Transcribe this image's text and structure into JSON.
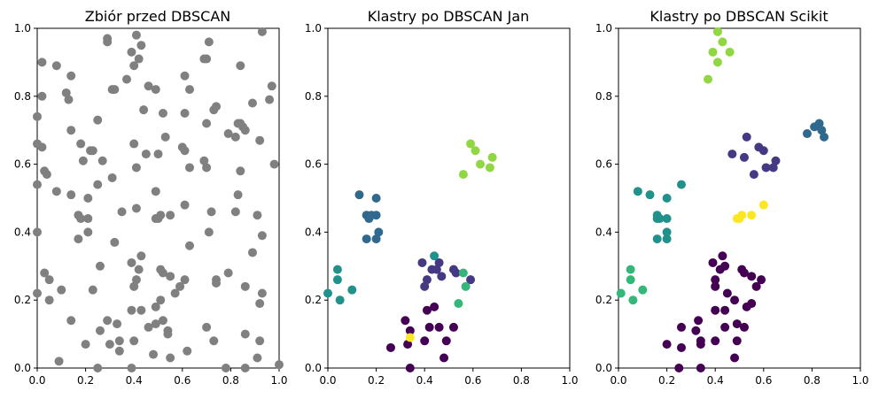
{
  "chart_data": [
    {
      "type": "scatter",
      "title": "Zbiór przed DBSCAN",
      "xlim": [
        0,
        1
      ],
      "ylim": [
        0,
        1
      ],
      "xticks": [
        "0.0",
        "0.2",
        "0.4",
        "0.6",
        "0.8",
        "1.0"
      ],
      "yticks": [
        "0.0",
        "0.2",
        "0.4",
        "0.6",
        "0.8",
        "1.0"
      ],
      "grid": false,
      "point_color": "#808080",
      "points": [
        [
          0.08,
          0.89
        ],
        [
          0.02,
          0.9
        ],
        [
          0.14,
          0.86
        ],
        [
          0.02,
          0.8
        ],
        [
          0.12,
          0.81
        ],
        [
          0.0,
          0.74
        ],
        [
          0.13,
          0.79
        ],
        [
          0.29,
          0.97
        ],
        [
          0.29,
          0.96
        ],
        [
          0.41,
          0.98
        ],
        [
          0.39,
          0.93
        ],
        [
          0.43,
          0.95
        ],
        [
          0.4,
          0.89
        ],
        [
          0.42,
          0.91
        ],
        [
          0.31,
          0.82
        ],
        [
          0.32,
          0.82
        ],
        [
          0.37,
          0.85
        ],
        [
          0.46,
          0.83
        ],
        [
          0.44,
          0.76
        ],
        [
          0.49,
          0.82
        ],
        [
          0.52,
          0.75
        ],
        [
          0.61,
          0.86
        ],
        [
          0.63,
          0.82
        ],
        [
          0.69,
          0.91
        ],
        [
          0.71,
          0.96
        ],
        [
          0.7,
          0.91
        ],
        [
          0.61,
          0.75
        ],
        [
          0.73,
          0.76
        ],
        [
          0.74,
          0.77
        ],
        [
          0.84,
          0.89
        ],
        [
          0.93,
          0.99
        ],
        [
          0.97,
          0.83
        ],
        [
          0.96,
          0.79
        ],
        [
          0.89,
          0.78
        ],
        [
          0.25,
          0.73
        ],
        [
          0.14,
          0.7
        ],
        [
          0.0,
          0.66
        ],
        [
          0.02,
          0.65
        ],
        [
          0.18,
          0.66
        ],
        [
          0.22,
          0.64
        ],
        [
          0.23,
          0.64
        ],
        [
          0.27,
          0.61
        ],
        [
          0.19,
          0.61
        ],
        [
          0.4,
          0.66
        ],
        [
          0.45,
          0.63
        ],
        [
          0.41,
          0.59
        ],
        [
          0.5,
          0.63
        ],
        [
          0.53,
          0.68
        ],
        [
          0.6,
          0.65
        ],
        [
          0.61,
          0.64
        ],
        [
          0.7,
          0.72
        ],
        [
          0.79,
          0.69
        ],
        [
          0.82,
          0.68
        ],
        [
          0.83,
          0.72
        ],
        [
          0.84,
          0.72
        ],
        [
          0.85,
          0.71
        ],
        [
          0.86,
          0.7
        ],
        [
          0.92,
          0.67
        ],
        [
          0.98,
          0.6
        ],
        [
          0.04,
          0.57
        ],
        [
          0.03,
          0.58
        ],
        [
          0.0,
          0.54
        ],
        [
          0.25,
          0.54
        ],
        [
          0.31,
          0.56
        ],
        [
          0.49,
          0.52
        ],
        [
          0.63,
          0.59
        ],
        [
          0.69,
          0.61
        ],
        [
          0.7,
          0.59
        ],
        [
          0.84,
          0.58
        ],
        [
          0.83,
          0.51
        ],
        [
          0.08,
          0.52
        ],
        [
          0.14,
          0.51
        ],
        [
          0.21,
          0.5
        ],
        [
          0.17,
          0.45
        ],
        [
          0.18,
          0.44
        ],
        [
          0.21,
          0.44
        ],
        [
          0.35,
          0.46
        ],
        [
          0.41,
          0.47
        ],
        [
          0.49,
          0.44
        ],
        [
          0.5,
          0.44
        ],
        [
          0.51,
          0.45
        ],
        [
          0.55,
          0.45
        ],
        [
          0.61,
          0.48
        ],
        [
          0.72,
          0.46
        ],
        [
          0.82,
          0.46
        ],
        [
          0.91,
          0.45
        ],
        [
          0.0,
          0.4
        ],
        [
          0.17,
          0.38
        ],
        [
          0.21,
          0.4
        ],
        [
          0.32,
          0.37
        ],
        [
          0.63,
          0.36
        ],
        [
          0.71,
          0.4
        ],
        [
          0.93,
          0.39
        ],
        [
          0.89,
          0.34
        ],
        [
          0.39,
          0.31
        ],
        [
          0.43,
          0.33
        ],
        [
          0.42,
          0.29
        ],
        [
          0.55,
          0.27
        ],
        [
          0.51,
          0.29
        ],
        [
          0.52,
          0.28
        ],
        [
          0.57,
          0.22
        ],
        [
          0.61,
          0.26
        ],
        [
          0.59,
          0.24
        ],
        [
          0.79,
          0.28
        ],
        [
          0.74,
          0.25
        ],
        [
          0.74,
          0.26
        ],
        [
          0.86,
          0.24
        ],
        [
          0.93,
          0.22
        ],
        [
          0.26,
          0.3
        ],
        [
          0.41,
          0.26
        ],
        [
          0.4,
          0.24
        ],
        [
          0.43,
          0.17
        ],
        [
          0.51,
          0.2
        ],
        [
          0.49,
          0.18
        ],
        [
          0.03,
          0.28
        ],
        [
          0.05,
          0.26
        ],
        [
          0.0,
          0.22
        ],
        [
          0.1,
          0.23
        ],
        [
          0.05,
          0.2
        ],
        [
          0.23,
          0.23
        ],
        [
          0.39,
          0.17
        ],
        [
          0.46,
          0.12
        ],
        [
          0.49,
          0.13
        ],
        [
          0.52,
          0.14
        ],
        [
          0.54,
          0.1
        ],
        [
          0.62,
          0.05
        ],
        [
          0.7,
          0.12
        ],
        [
          0.73,
          0.08
        ],
        [
          0.92,
          0.19
        ],
        [
          0.92,
          0.08
        ],
        [
          0.86,
          0.1
        ],
        [
          0.14,
          0.14
        ],
        [
          0.26,
          0.11
        ],
        [
          0.33,
          0.13
        ],
        [
          0.34,
          0.08
        ],
        [
          0.34,
          0.05
        ],
        [
          0.4,
          0.08
        ],
        [
          0.48,
          0.04
        ],
        [
          0.39,
          0.0
        ],
        [
          0.55,
          0.03
        ],
        [
          0.2,
          0.07
        ],
        [
          0.3,
          0.07
        ],
        [
          0.09,
          0.02
        ],
        [
          0.25,
          0.0
        ],
        [
          0.78,
          0.0
        ],
        [
          0.86,
          0.0
        ],
        [
          1.0,
          0.01
        ],
        [
          0.91,
          0.03
        ],
        [
          0.54,
          0.11
        ],
        [
          0.29,
          0.14
        ]
      ]
    },
    {
      "type": "scatter",
      "title": "Klastry po DBSCAN Jan",
      "xlim": [
        0,
        1
      ],
      "ylim": [
        0,
        1
      ],
      "xticks": [
        "0.0",
        "0.2",
        "0.4",
        "0.6",
        "0.8",
        "1.0"
      ],
      "yticks": [
        "0.0",
        "0.2",
        "0.4",
        "0.6",
        "0.8",
        "1.0"
      ],
      "grid": false,
      "series": [
        {
          "color": "#440154",
          "points": [
            [
              0.32,
              0.14
            ],
            [
              0.34,
              0.11
            ],
            [
              0.34,
              0.0
            ],
            [
              0.4,
              0.08
            ],
            [
              0.41,
              0.17
            ],
            [
              0.42,
              0.12
            ],
            [
              0.44,
              0.18
            ],
            [
              0.46,
              0.12
            ],
            [
              0.48,
              0.03
            ],
            [
              0.49,
              0.08
            ],
            [
              0.52,
              0.12
            ],
            [
              0.26,
              0.06
            ],
            [
              0.33,
              0.07
            ]
          ]
        },
        {
          "color": "#443983",
          "points": [
            [
              0.39,
              0.31
            ],
            [
              0.43,
              0.29
            ],
            [
              0.45,
              0.29
            ],
            [
              0.46,
              0.31
            ],
            [
              0.47,
              0.27
            ],
            [
              0.41,
              0.26
            ],
            [
              0.4,
              0.24
            ],
            [
              0.52,
              0.29
            ],
            [
              0.53,
              0.28
            ],
            [
              0.59,
              0.26
            ]
          ]
        },
        {
          "color": "#31688e",
          "points": [
            [
              0.13,
              0.51
            ],
            [
              0.2,
              0.5
            ],
            [
              0.16,
              0.45
            ],
            [
              0.17,
              0.44
            ],
            [
              0.18,
              0.45
            ],
            [
              0.2,
              0.45
            ],
            [
              0.16,
              0.38
            ],
            [
              0.21,
              0.4
            ],
            [
              0.2,
              0.38
            ]
          ]
        },
        {
          "color": "#21918c",
          "points": [
            [
              0.04,
              0.29
            ],
            [
              0.04,
              0.26
            ],
            [
              0.0,
              0.22
            ],
            [
              0.1,
              0.23
            ],
            [
              0.05,
              0.2
            ],
            [
              0.44,
              0.33
            ]
          ]
        },
        {
          "color": "#35b779",
          "points": [
            [
              0.56,
              0.28
            ],
            [
              0.57,
              0.24
            ],
            [
              0.54,
              0.19
            ]
          ]
        },
        {
          "color": "#90d743",
          "points": [
            [
              0.59,
              0.66
            ],
            [
              0.61,
              0.64
            ],
            [
              0.63,
              0.6
            ],
            [
              0.67,
              0.59
            ],
            [
              0.68,
              0.62
            ],
            [
              0.56,
              0.57
            ]
          ]
        },
        {
          "color": "#fde725",
          "points": [
            [
              0.34,
              0.09
            ]
          ]
        }
      ]
    },
    {
      "type": "scatter",
      "title": "Klastry po DBSCAN Scikit",
      "xlim": [
        0,
        1
      ],
      "ylim": [
        0,
        1
      ],
      "xticks": [
        "0.0",
        "0.2",
        "0.4",
        "0.6",
        "0.8",
        "1.0"
      ],
      "yticks": [
        "0.0",
        "0.2",
        "0.4",
        "0.6",
        "0.8",
        "1.0"
      ],
      "grid": false,
      "series": [
        {
          "color": "#440154",
          "points": [
            [
              0.39,
              0.31
            ],
            [
              0.43,
              0.33
            ],
            [
              0.42,
              0.29
            ],
            [
              0.44,
              0.3
            ],
            [
              0.51,
              0.29
            ],
            [
              0.52,
              0.28
            ],
            [
              0.55,
              0.27
            ],
            [
              0.57,
              0.24
            ],
            [
              0.59,
              0.26
            ],
            [
              0.4,
              0.26
            ],
            [
              0.4,
              0.24
            ],
            [
              0.45,
              0.22
            ],
            [
              0.44,
              0.17
            ],
            [
              0.48,
              0.2
            ],
            [
              0.53,
              0.18
            ],
            [
              0.55,
              0.19
            ],
            [
              0.4,
              0.17
            ],
            [
              0.33,
              0.14
            ],
            [
              0.34,
              0.08
            ],
            [
              0.34,
              0.07
            ],
            [
              0.4,
              0.08
            ],
            [
              0.44,
              0.12
            ],
            [
              0.49,
              0.13
            ],
            [
              0.52,
              0.12
            ],
            [
              0.49,
              0.08
            ],
            [
              0.48,
              0.03
            ],
            [
              0.26,
              0.12
            ],
            [
              0.2,
              0.07
            ],
            [
              0.26,
              0.06
            ],
            [
              0.25,
              0.0
            ],
            [
              0.34,
              0.0
            ],
            [
              0.32,
              0.11
            ]
          ]
        },
        {
          "color": "#443983",
          "points": [
            [
              0.53,
              0.68
            ],
            [
              0.58,
              0.65
            ],
            [
              0.6,
              0.64
            ],
            [
              0.47,
              0.63
            ],
            [
              0.52,
              0.62
            ],
            [
              0.61,
              0.59
            ],
            [
              0.64,
              0.59
            ],
            [
              0.65,
              0.61
            ],
            [
              0.56,
              0.57
            ]
          ]
        },
        {
          "color": "#31688e",
          "points": [
            [
              0.78,
              0.69
            ],
            [
              0.81,
              0.71
            ],
            [
              0.83,
              0.72
            ],
            [
              0.84,
              0.7
            ],
            [
              0.85,
              0.68
            ]
          ]
        },
        {
          "color": "#21918c",
          "points": [
            [
              0.08,
              0.52
            ],
            [
              0.13,
              0.51
            ],
            [
              0.26,
              0.54
            ],
            [
              0.2,
              0.5
            ],
            [
              0.16,
              0.45
            ],
            [
              0.17,
              0.44
            ],
            [
              0.16,
              0.44
            ],
            [
              0.2,
              0.44
            ],
            [
              0.16,
              0.38
            ],
            [
              0.2,
              0.4
            ],
            [
              0.2,
              0.38
            ]
          ]
        },
        {
          "color": "#35b779",
          "points": [
            [
              0.05,
              0.29
            ],
            [
              0.05,
              0.26
            ],
            [
              0.01,
              0.22
            ],
            [
              0.1,
              0.23
            ],
            [
              0.06,
              0.2
            ]
          ]
        },
        {
          "color": "#90d743",
          "points": [
            [
              0.41,
              0.99
            ],
            [
              0.43,
              0.96
            ],
            [
              0.39,
              0.93
            ],
            [
              0.46,
              0.93
            ],
            [
              0.41,
              0.9
            ],
            [
              0.37,
              0.85
            ]
          ]
        },
        {
          "color": "#fde725",
          "points": [
            [
              0.49,
              0.44
            ],
            [
              0.5,
              0.44
            ],
            [
              0.51,
              0.45
            ],
            [
              0.55,
              0.45
            ],
            [
              0.6,
              0.48
            ]
          ]
        }
      ]
    }
  ]
}
